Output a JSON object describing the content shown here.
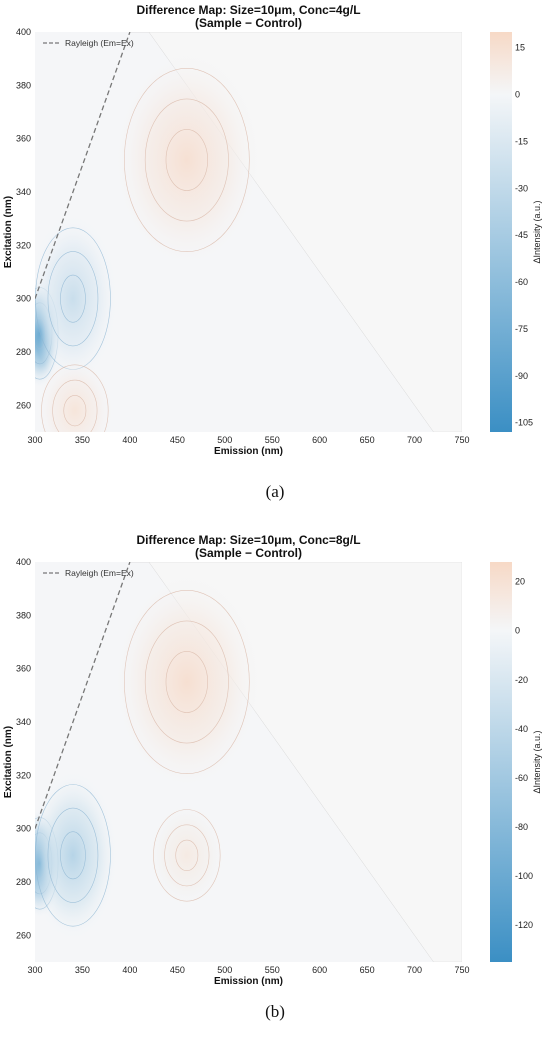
{
  "chart_data": [
    {
      "type": "heatmap",
      "title": "Difference Map: Size=10μm, Conc=4g/L",
      "subtitle": "(Sample − Control)",
      "xlabel": "Emission (nm)",
      "ylabel": "Excitation (nm)",
      "xlim": [
        300,
        750
      ],
      "ylim": [
        250,
        400
      ],
      "xticks": [
        300,
        350,
        400,
        450,
        500,
        550,
        600,
        650,
        700,
        750
      ],
      "yticks": [
        260,
        280,
        300,
        320,
        340,
        360,
        380,
        400
      ],
      "colorbar": {
        "label": "ΔIntensity (a.u.)",
        "range": [
          -108,
          20
        ],
        "ticks": [
          15,
          0,
          -15,
          -30,
          -45,
          -60,
          -75,
          -90,
          -105
        ],
        "negative_color": "#3b8fc4",
        "positive_color": "#f7d9c6"
      },
      "legend": {
        "label": "Rayleigh (Em=Ex)",
        "position": "top-left"
      },
      "features": [
        {
          "em": 305,
          "ex": 287,
          "delta": -105
        },
        {
          "em": 340,
          "ex": 300,
          "delta": -25
        },
        {
          "em": 460,
          "ex": 352,
          "delta": 15
        },
        {
          "em": 342,
          "ex": 258,
          "delta": 12
        }
      ],
      "caption": "(a)"
    },
    {
      "type": "heatmap",
      "title": "Difference Map: Size=10μm, Conc=8g/L",
      "subtitle": "(Sample − Control)",
      "xlabel": "Emission (nm)",
      "ylabel": "Excitation (nm)",
      "xlim": [
        300,
        750
      ],
      "ylim": [
        250,
        400
      ],
      "xticks": [
        300,
        350,
        400,
        450,
        500,
        550,
        600,
        650,
        700,
        750
      ],
      "yticks": [
        260,
        280,
        300,
        320,
        340,
        360,
        380,
        400
      ],
      "colorbar": {
        "label": "ΔIntensity (a.u.)",
        "range": [
          -135,
          28
        ],
        "ticks": [
          20,
          0,
          -20,
          -40,
          -60,
          -80,
          -100,
          -120
        ],
        "negative_color": "#3b8fc4",
        "positive_color": "#f7d9c6"
      },
      "legend": {
        "label": "Rayleigh (Em=Ex)",
        "position": "top-left"
      },
      "features": [
        {
          "em": 305,
          "ex": 287,
          "delta": -130
        },
        {
          "em": 340,
          "ex": 290,
          "delta": -45
        },
        {
          "em": 460,
          "ex": 355,
          "delta": 22
        },
        {
          "em": 460,
          "ex": 290,
          "delta": 12
        }
      ],
      "caption": "(b)"
    }
  ]
}
